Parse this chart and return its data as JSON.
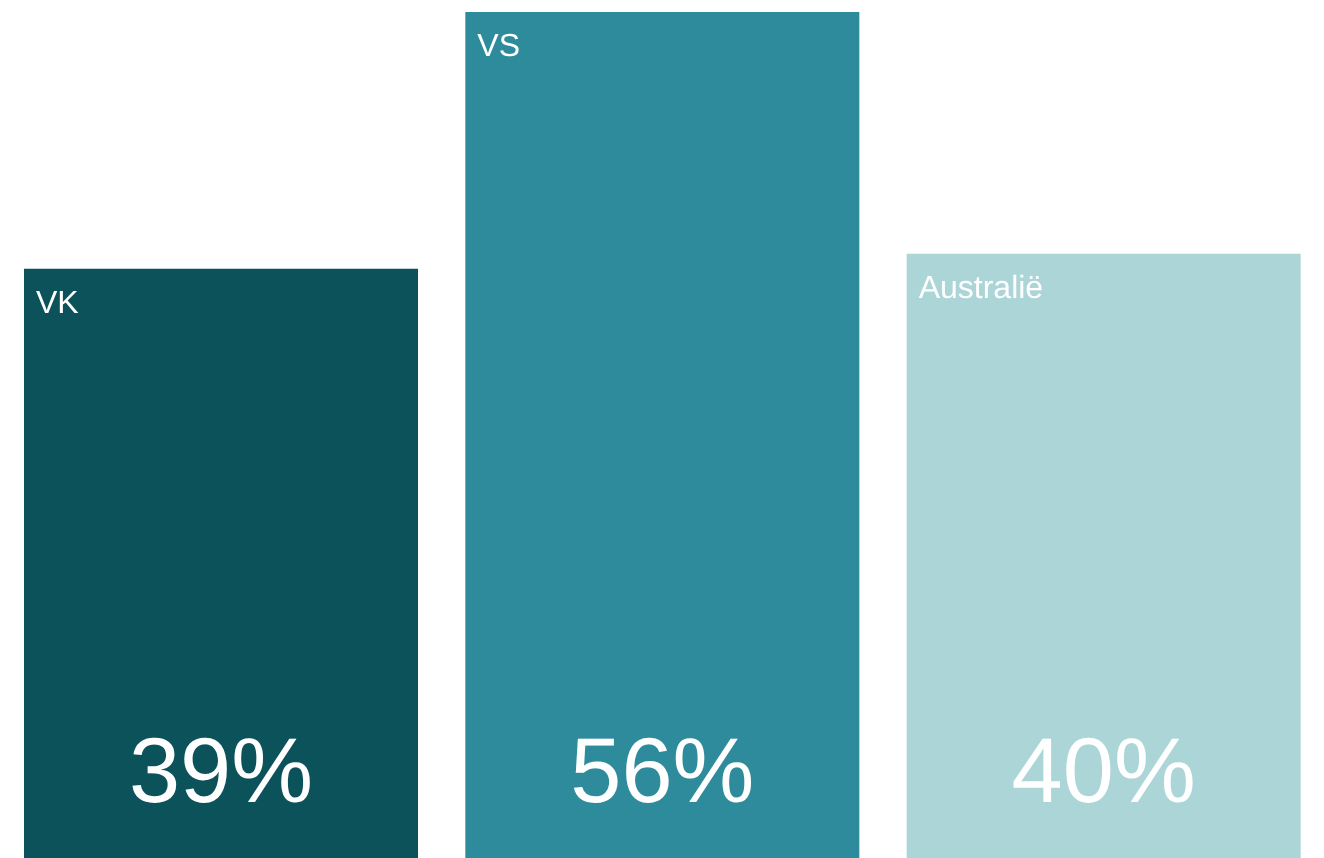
{
  "chart_data": {
    "type": "bar",
    "categories": [
      "VK",
      "VS",
      "Australië"
    ],
    "values": [
      39,
      56,
      40
    ],
    "colors": [
      "#0b525b",
      "#2e8b9c",
      "#acd5d8"
    ],
    "value_labels": [
      "39%",
      "56%",
      "40%"
    ],
    "tick_labels": false,
    "grid": false,
    "legend": false
  }
}
